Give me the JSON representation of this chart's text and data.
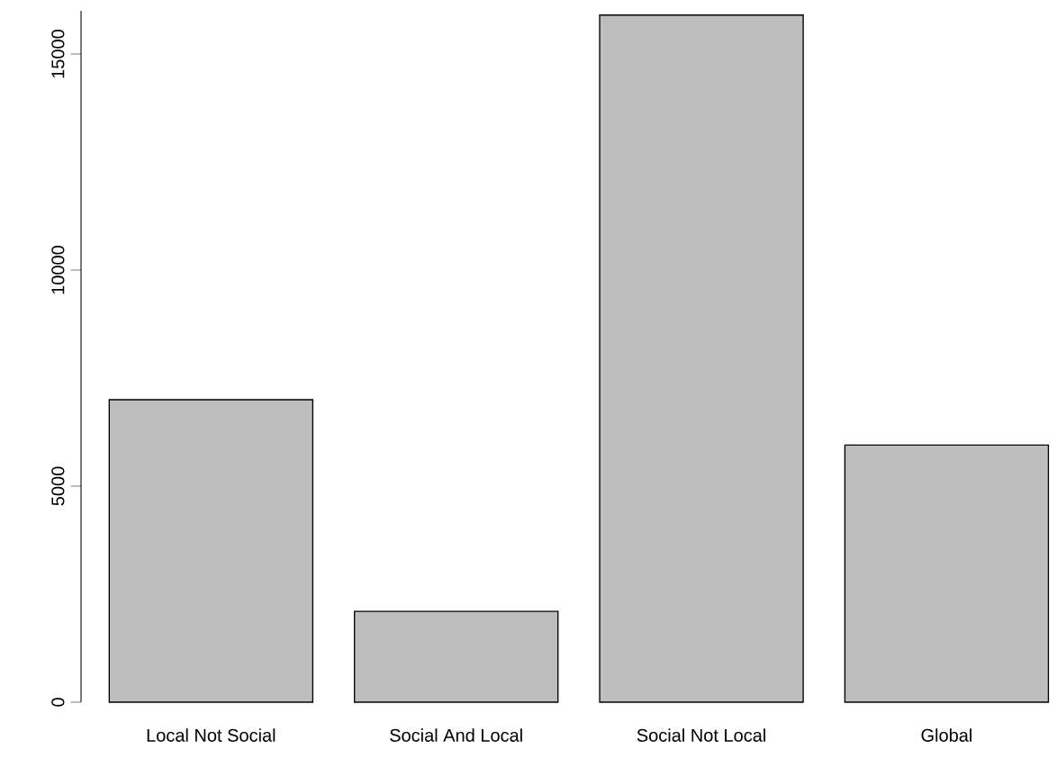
{
  "chart_data": {
    "type": "bar",
    "categories": [
      "Local Not Social",
      "Social And Local",
      "Social Not Local",
      "Global"
    ],
    "values": [
      7000,
      2100,
      15900,
      5950
    ],
    "color": "#bebebe",
    "ylim": [
      0,
      16000
    ],
    "yticks": [
      0,
      5000,
      10000,
      15000
    ],
    "grid": false
  }
}
